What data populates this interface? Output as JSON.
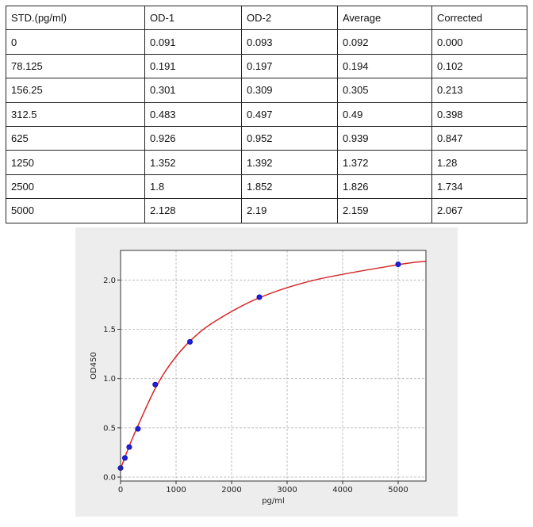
{
  "table": {
    "headers": [
      "STD.(pg/ml)",
      "OD-1",
      "OD-2",
      "Average",
      "Corrected"
    ],
    "rows": [
      [
        "0",
        "0.091",
        "0.093",
        "0.092",
        "0.000"
      ],
      [
        "78.125",
        "0.191",
        "0.197",
        "0.194",
        "0.102"
      ],
      [
        "156.25",
        "0.301",
        "0.309",
        "0.305",
        "0.213"
      ],
      [
        "312.5",
        "0.483",
        "0.497",
        "0.49",
        "0.398"
      ],
      [
        "625",
        "0.926",
        "0.952",
        "0.939",
        "0.847"
      ],
      [
        "1250",
        "1.352",
        "1.392",
        "1.372",
        "1.28"
      ],
      [
        "2500",
        "1.8",
        "1.852",
        "1.826",
        "1.734"
      ],
      [
        "5000",
        "2.128",
        "2.19",
        "2.159",
        "2.067"
      ]
    ]
  },
  "chart_data": {
    "type": "scatter",
    "xlabel": "pg/ml",
    "ylabel": "OD450",
    "xlim": [
      0,
      5500
    ],
    "ylim": [
      -0.04,
      2.3
    ],
    "xticks": [
      0,
      1000,
      2000,
      3000,
      4000,
      5000
    ],
    "yticks": [
      0.0,
      0.5,
      1.0,
      1.5,
      2.0
    ],
    "xtick_labels": [
      "0",
      "1000",
      "2000",
      "3000",
      "4000",
      "5000"
    ],
    "ytick_labels": [
      "0.0",
      "0.5",
      "1.0",
      "1.5",
      "2.0"
    ],
    "grid": true,
    "points": {
      "x": [
        0,
        78.125,
        156.25,
        312.5,
        625,
        1250,
        2500,
        5000
      ],
      "y": [
        0.092,
        0.194,
        0.305,
        0.49,
        0.939,
        1.372,
        1.826,
        2.159
      ]
    },
    "fit_curve": {
      "x": [
        0,
        78,
        156,
        312,
        625,
        900,
        1250,
        1700,
        2500,
        3500,
        5000,
        5500
      ],
      "y": [
        0.085,
        0.2,
        0.315,
        0.52,
        0.9,
        1.15,
        1.38,
        1.58,
        1.82,
        2.0,
        2.155,
        2.19
      ]
    },
    "colors": {
      "points": "#1f1fd6",
      "curve": "#d62728",
      "grid": "#b0b0b0",
      "panel": "#ededed"
    }
  }
}
